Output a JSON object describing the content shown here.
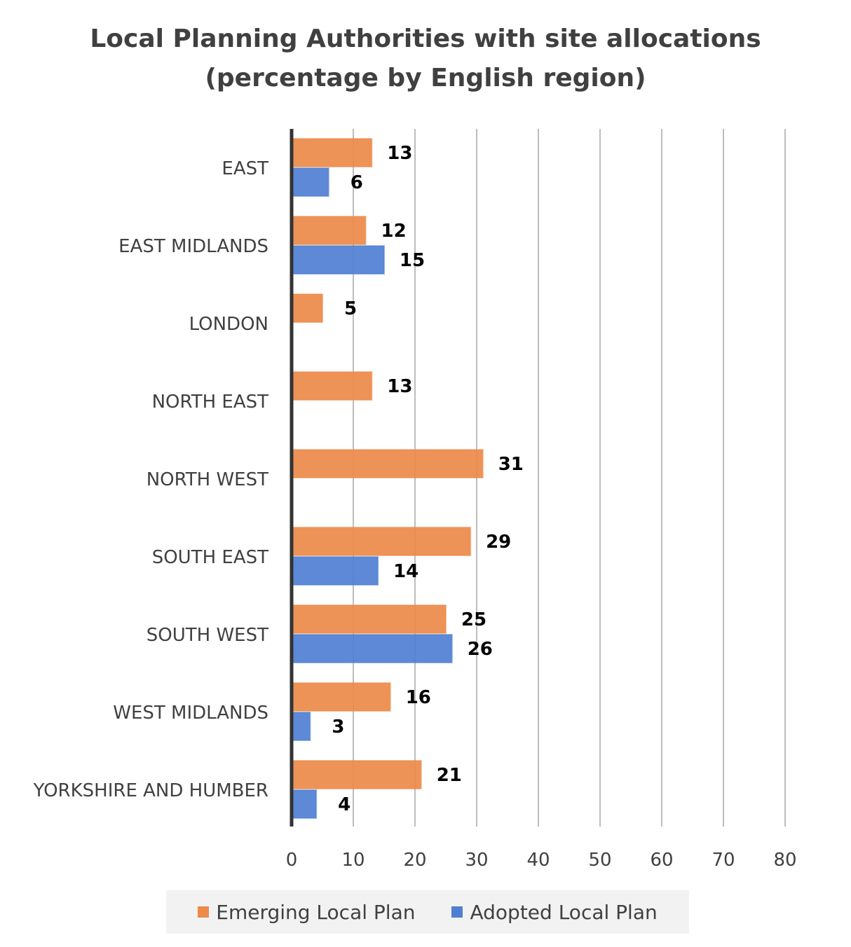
{
  "title_line1": "Local Planning Authorities with site allocations",
  "title_line2": "(percentage by English region)",
  "legend": {
    "emerging_label": "Emerging Local Plan",
    "adopted_label": "Adopted Local Plan"
  },
  "colors": {
    "emerging": "#ed8a4a",
    "adopted": "#4f7fd2",
    "axis": "#333333",
    "grid": "#bdbdbd"
  },
  "chart_data": {
    "type": "bar",
    "orientation": "horizontal",
    "title": "Local Planning Authorities with site allocations (percentage by English region)",
    "categories": [
      "EAST",
      "EAST MIDLANDS",
      "LONDON",
      "NORTH EAST",
      "NORTH WEST",
      "SOUTH EAST",
      "SOUTH WEST",
      "WEST MIDLANDS",
      "YORKSHIRE AND HUMBER"
    ],
    "series": [
      {
        "name": "Emerging Local Plan",
        "values": [
          13,
          12,
          5,
          13,
          31,
          29,
          25,
          16,
          21
        ]
      },
      {
        "name": "Adopted Local Plan",
        "values": [
          6,
          15,
          null,
          null,
          null,
          14,
          26,
          3,
          4
        ]
      }
    ],
    "xlim": [
      0,
      80
    ],
    "xticks": [
      0,
      10,
      20,
      30,
      40,
      50,
      60,
      70,
      80
    ],
    "xlabel": "",
    "ylabel": "",
    "grid": true,
    "data_labels": true,
    "legend_position": "bottom"
  }
}
